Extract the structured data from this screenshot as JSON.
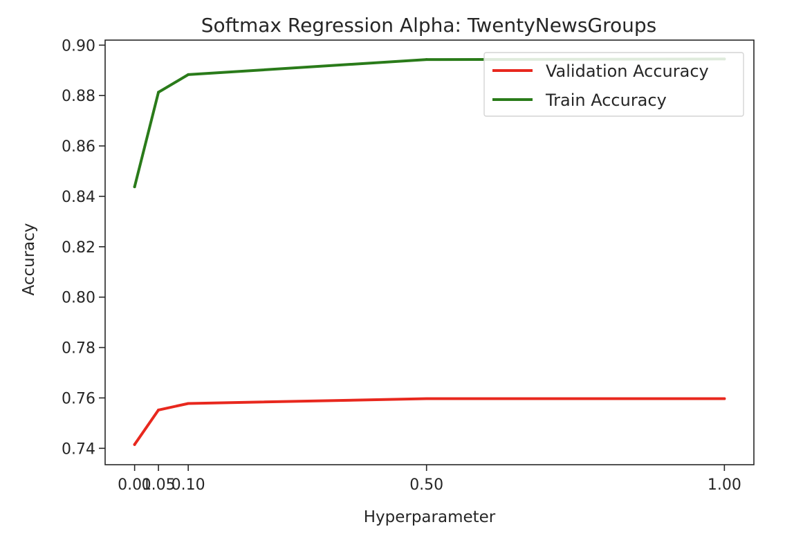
{
  "chart_data": {
    "type": "line",
    "title": "Softmax Regression Alpha: TwentyNewsGroups",
    "xlabel": "Hyperparameter",
    "ylabel": "Accuracy",
    "x": [
      0.01,
      0.05,
      0.1,
      0.5,
      1.0
    ],
    "x_tick_values": [
      0.01,
      0.05,
      0.1,
      0.5,
      1.0
    ],
    "x_tick_labels": [
      "0.01",
      "0.05",
      "0.10",
      "0.50",
      "1.00"
    ],
    "y_tick_values": [
      0.74,
      0.76,
      0.78,
      0.8,
      0.82,
      0.84,
      0.86,
      0.88,
      0.9
    ],
    "y_tick_labels": [
      "0.74",
      "0.76",
      "0.78",
      "0.80",
      "0.82",
      "0.84",
      "0.86",
      "0.88",
      "0.90"
    ],
    "xlim": [
      -0.0395,
      1.0495
    ],
    "ylim": [
      0.7335,
      0.902
    ],
    "grid": false,
    "legend_position": "upper-right",
    "series": [
      {
        "name": "Validation Accuracy",
        "color": "#e8281e",
        "values": [
          0.7415,
          0.7552,
          0.7578,
          0.7597,
          0.7597
        ]
      },
      {
        "name": "Train Accuracy",
        "color": "#2a7b1a",
        "values": [
          0.8438,
          0.8813,
          0.8883,
          0.8943,
          0.8945
        ]
      }
    ]
  }
}
